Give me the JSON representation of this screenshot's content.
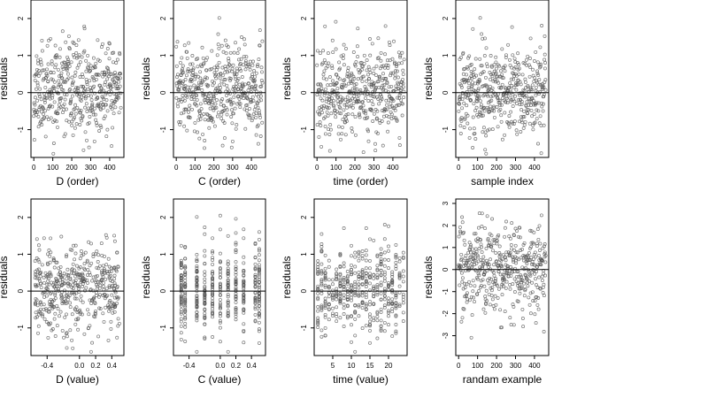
{
  "figure": {
    "title": "",
    "colors": {
      "point": "#555555",
      "frame": "#000000",
      "zero_line": "#000000",
      "background": "#ffffff"
    }
  },
  "chart_data": [
    {
      "type": "scatter",
      "xlabel": "D (order)",
      "ylabel": "residuals",
      "xlim": [
        -15,
        475
      ],
      "ylim": [
        -1.75,
        2.5
      ],
      "xticks": [
        0,
        100,
        200,
        300,
        400
      ],
      "xticklabels": [
        "0",
        "100",
        "200",
        "300",
        "400"
      ],
      "yticks": [
        -1,
        0,
        1,
        2
      ],
      "yticklabels": [
        "-1",
        "0",
        "1",
        "2"
      ],
      "hline": 0,
      "grid": false,
      "n_points": 460,
      "x_kind": "index",
      "seed": 11,
      "note_points": "approx. 460 residual points, roughly symmetric about 0, spread about -1.5 to 2.3"
    },
    {
      "type": "scatter",
      "xlabel": "C (order)",
      "ylabel": "residuals",
      "xlim": [
        -15,
        475
      ],
      "ylim": [
        -1.75,
        2.5
      ],
      "xticks": [
        0,
        100,
        200,
        300,
        400
      ],
      "xticklabels": [
        "0",
        "100",
        "200",
        "300",
        "400"
      ],
      "yticks": [
        -1,
        0,
        1,
        2
      ],
      "yticklabels": [
        "-1",
        "0",
        "1",
        "2"
      ],
      "hline": 0,
      "grid": false,
      "n_points": 460,
      "x_kind": "index",
      "seed": 23
    },
    {
      "type": "scatter",
      "xlabel": "time (order)",
      "ylabel": "residuals",
      "xlim": [
        -15,
        475
      ],
      "ylim": [
        -1.75,
        2.5
      ],
      "xticks": [
        0,
        100,
        200,
        300,
        400
      ],
      "xticklabels": [
        "0",
        "100",
        "200",
        "300",
        "400"
      ],
      "yticks": [
        -1,
        0,
        1,
        2
      ],
      "yticklabels": [
        "-1",
        "0",
        "1",
        "2"
      ],
      "hline": 0,
      "grid": false,
      "n_points": 460,
      "x_kind": "index",
      "seed": 37
    },
    {
      "type": "scatter",
      "xlabel": "sample index",
      "ylabel": "residuals",
      "xlim": [
        -15,
        475
      ],
      "ylim": [
        -1.75,
        2.5
      ],
      "xticks": [
        0,
        100,
        200,
        300,
        400
      ],
      "xticklabels": [
        "0",
        "100",
        "200",
        "300",
        "400"
      ],
      "yticks": [
        -1,
        0,
        1,
        2
      ],
      "yticklabels": [
        "-1",
        "0",
        "1",
        "2"
      ],
      "hline": 0,
      "grid": false,
      "n_points": 460,
      "x_kind": "index",
      "seed": 41
    },
    {
      "type": "scatter",
      "xlabel": "D (value)",
      "ylabel": "residuals",
      "xlim": [
        -0.6,
        0.55
      ],
      "ylim": [
        -1.75,
        2.5
      ],
      "xticks": [
        -0.4,
        0.0,
        0.2,
        0.4
      ],
      "xticklabels": [
        "-0.4",
        "0.0",
        "0.2",
        "0.4"
      ],
      "yticks": [
        -1,
        0,
        1,
        2
      ],
      "yticklabels": [
        "-1",
        "0",
        "1",
        "2"
      ],
      "hline": 0,
      "grid": false,
      "n_points": 460,
      "x_kind": "uniform",
      "x_range": [
        -0.55,
        0.5
      ],
      "seed": 53
    },
    {
      "type": "scatter",
      "xlabel": "C (value)",
      "ylabel": "residuals",
      "xlim": [
        -0.6,
        0.58
      ],
      "ylim": [
        -1.75,
        2.5
      ],
      "xticks": [
        -0.4,
        0.0,
        0.2,
        0.4
      ],
      "xticklabels": [
        "-0.4",
        "0.0",
        "0.2",
        "0.4"
      ],
      "yticks": [
        -1,
        0,
        1,
        2
      ],
      "yticklabels": [
        "-1",
        "0",
        "1",
        "2"
      ],
      "hline": 0,
      "grid": false,
      "n_points": 460,
      "x_kind": "discrete",
      "x_levels": [
        -0.5,
        -0.45,
        -0.3,
        -0.2,
        -0.1,
        0.0,
        0.1,
        0.2,
        0.3,
        0.45,
        0.5
      ],
      "seed": 67
    },
    {
      "type": "scatter",
      "xlabel": "time (value)",
      "ylabel": "residuals",
      "xlim": [
        0,
        25
      ],
      "ylim": [
        -1.75,
        2.5
      ],
      "xticks": [
        5,
        10,
        15,
        20
      ],
      "xticklabels": [
        "5",
        "10",
        "15",
        "20"
      ],
      "yticks": [
        -1,
        0,
        1,
        2
      ],
      "yticklabels": [
        "-1",
        "0",
        "1",
        "2"
      ],
      "hline": 0,
      "grid": false,
      "n_points": 460,
      "x_kind": "discrete",
      "x_levels": [
        1,
        2,
        3,
        4,
        5,
        6,
        7,
        8,
        9,
        10,
        11,
        12,
        13,
        14,
        15,
        16,
        17,
        18,
        19,
        20,
        21,
        22,
        23,
        24
      ],
      "seed": 71
    },
    {
      "type": "scatter",
      "xlabel": "randam example",
      "ylabel": "residuals",
      "xlim": [
        -15,
        475
      ],
      "ylim": [
        -3.9,
        3.2
      ],
      "xticks": [
        0,
        100,
        200,
        300,
        400
      ],
      "xticklabels": [
        "0",
        "100",
        "200",
        "300",
        "400"
      ],
      "yticks": [
        -3,
        -2,
        -1,
        0,
        1,
        2,
        3
      ],
      "yticklabels": [
        "-3",
        "-2",
        "-1",
        "0",
        "1",
        "2",
        "3"
      ],
      "hline": 0,
      "grid": false,
      "n_points": 460,
      "x_kind": "index",
      "spread": 1.0,
      "seed": 89
    }
  ]
}
